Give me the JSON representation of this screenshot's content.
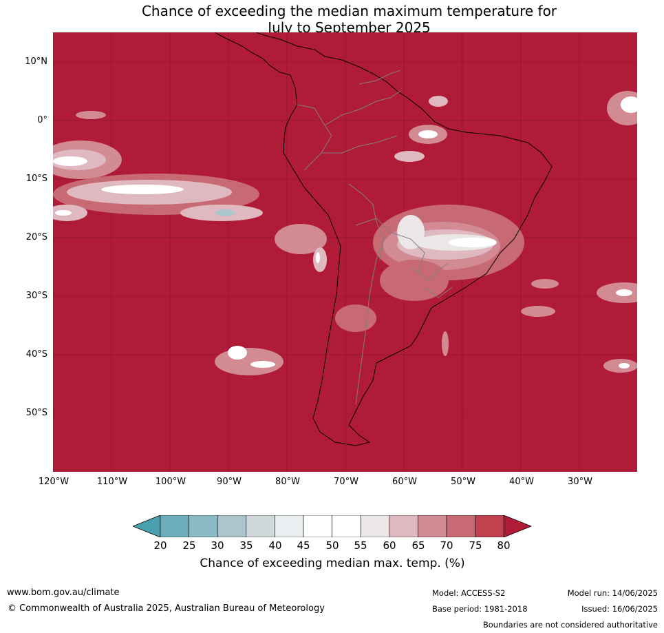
{
  "title_line1": "Chance of exceeding the median maximum temperature for",
  "title_line2": "July to September 2025",
  "map": {
    "background_color": "#b01c37",
    "lat_labels": [
      "10°N",
      "0°",
      "10°S",
      "20°S",
      "30°S",
      "40°S",
      "50°S"
    ],
    "lon_labels": [
      "120°W",
      "110°W",
      "100°W",
      "90°W",
      "80°W",
      "70°W",
      "60°W",
      "50°W",
      "40°W",
      "30°W"
    ]
  },
  "colorbar": {
    "ticks": [
      "20",
      "25",
      "30",
      "35",
      "40",
      "45",
      "50",
      "55",
      "60",
      "65",
      "70",
      "75",
      "80"
    ],
    "colors": [
      "#4aa0ae",
      "#6caebb",
      "#8cbac7",
      "#aac6cc",
      "#d0d8d9",
      "#e9eff1",
      "#ffffff",
      "#ffffff",
      "#ebe7e8",
      "#e0b8bf",
      "#d28a93",
      "#c86a74",
      "#c0434f",
      "#b01c37"
    ],
    "label": "Chance of exceeding median max. temp. (%)"
  },
  "footer": {
    "website": "www.bom.gov.au/climate",
    "copyright": "© Commonwealth of Australia 2025, Australian Bureau of Meteorology",
    "model": "Model: ACCESS-S2",
    "base_period": "Base period: 1981-2018",
    "model_run": "Model run: 14/06/2025",
    "issued": "Issued: 16/06/2025",
    "disclaimer": "Boundaries are not considered authoritative"
  }
}
